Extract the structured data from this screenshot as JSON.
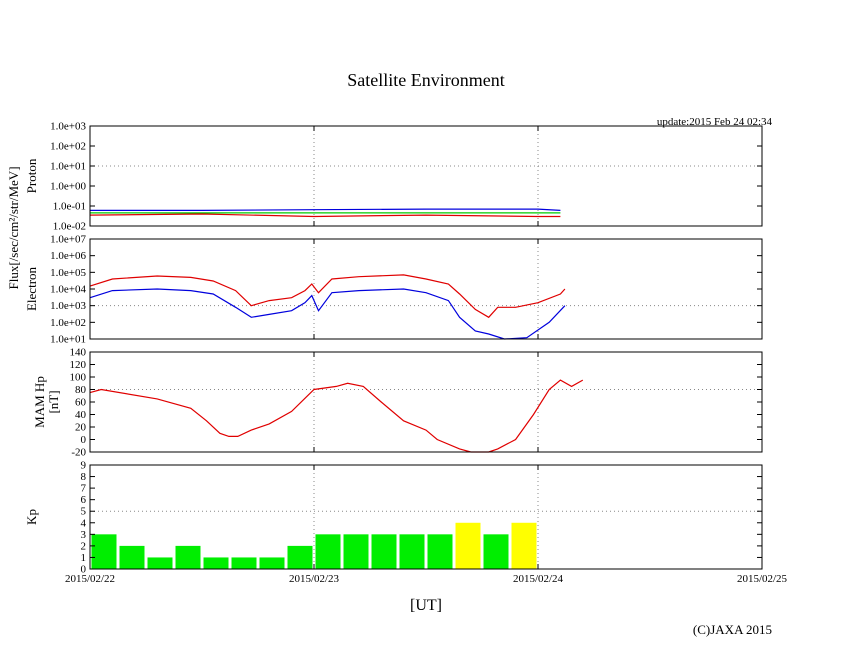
{
  "chart_data": {
    "title": "Satellite Environment",
    "update_text": "update:2015 Feb 24 02:34",
    "copyright": "(C)JAXA 2015",
    "xlabel": "[UT]",
    "x_ticks": [
      "2015/02/22",
      "2015/02/23",
      "2015/02/24",
      "2015/02/25"
    ],
    "x_range_days": [
      0,
      3
    ],
    "shared_ylabel": "Flux[/sec/cm²/str/MeV]",
    "colors": {
      "red": "#e00000",
      "blue": "#0000dd",
      "green": "#00cc00",
      "yellow": "#ffff00"
    },
    "panels": [
      {
        "name": "Proton",
        "type": "line",
        "ylabel": "Proton",
        "yscale": "log",
        "ylim": [
          0.01,
          1000
        ],
        "y_ticks": [
          "1.0e-02",
          "1.0e-01",
          "1.0e+00",
          "1.0e+01",
          "1.0e+02",
          "1.0e+03"
        ],
        "grid_y_at": [
          10
        ],
        "series": [
          {
            "color": "#0000dd",
            "points": [
              [
                0,
                0.06
              ],
              [
                0.5,
                0.06
              ],
              [
                1.0,
                0.065
              ],
              [
                1.5,
                0.07
              ],
              [
                2.0,
                0.07
              ],
              [
                2.1,
                0.06
              ]
            ]
          },
          {
            "color": "#00cc00",
            "points": [
              [
                0,
                0.045
              ],
              [
                0.5,
                0.045
              ],
              [
                1.0,
                0.045
              ],
              [
                1.5,
                0.045
              ],
              [
                2.0,
                0.045
              ],
              [
                2.1,
                0.045
              ]
            ]
          },
          {
            "color": "#e00000",
            "points": [
              [
                0,
                0.035
              ],
              [
                0.5,
                0.04
              ],
              [
                1.0,
                0.03
              ],
              [
                1.5,
                0.035
              ],
              [
                2.0,
                0.03
              ],
              [
                2.1,
                0.03
              ]
            ]
          }
        ]
      },
      {
        "name": "Electron",
        "type": "line",
        "ylabel": "Electron",
        "yscale": "log",
        "ylim": [
          10,
          10000000
        ],
        "y_ticks": [
          "1.0e+01",
          "1.0e+02",
          "1.0e+03",
          "1.0e+04",
          "1.0e+05",
          "1.0e+06",
          "1.0e+07"
        ],
        "grid_y_at": [
          1000
        ],
        "series": [
          {
            "color": "#e00000",
            "points": [
              [
                0,
                15000
              ],
              [
                0.1,
                40000
              ],
              [
                0.3,
                60000
              ],
              [
                0.45,
                50000
              ],
              [
                0.55,
                30000
              ],
              [
                0.65,
                8000
              ],
              [
                0.72,
                1000
              ],
              [
                0.8,
                2000
              ],
              [
                0.9,
                3000
              ],
              [
                0.96,
                8000
              ],
              [
                0.99,
                20000
              ],
              [
                1.02,
                6000
              ],
              [
                1.08,
                40000
              ],
              [
                1.2,
                55000
              ],
              [
                1.4,
                70000
              ],
              [
                1.5,
                40000
              ],
              [
                1.6,
                20000
              ],
              [
                1.65,
                5000
              ],
              [
                1.72,
                600
              ],
              [
                1.78,
                200
              ],
              [
                1.82,
                800
              ],
              [
                1.9,
                800
              ],
              [
                2.0,
                1500
              ],
              [
                2.1,
                5000
              ],
              [
                2.12,
                10000
              ]
            ]
          },
          {
            "color": "#0000dd",
            "points": [
              [
                0,
                3000
              ],
              [
                0.1,
                8000
              ],
              [
                0.3,
                10000
              ],
              [
                0.45,
                8000
              ],
              [
                0.55,
                5000
              ],
              [
                0.65,
                800
              ],
              [
                0.72,
                200
              ],
              [
                0.8,
                300
              ],
              [
                0.9,
                500
              ],
              [
                0.96,
                1500
              ],
              [
                0.99,
                4000
              ],
              [
                1.02,
                500
              ],
              [
                1.08,
                6000
              ],
              [
                1.2,
                8000
              ],
              [
                1.4,
                10000
              ],
              [
                1.5,
                6000
              ],
              [
                1.6,
                2000
              ],
              [
                1.65,
                200
              ],
              [
                1.72,
                30
              ],
              [
                1.78,
                20
              ],
              [
                1.85,
                10
              ],
              [
                1.95,
                12
              ],
              [
                2.05,
                100
              ],
              [
                2.12,
                1000
              ]
            ]
          }
        ]
      },
      {
        "name": "MAM Hp",
        "type": "line",
        "ylabel": "MAM Hp",
        "ylabel2": "[nT]",
        "ylim": [
          -20,
          140
        ],
        "y_ticks": [
          "-20",
          "0",
          "20",
          "40",
          "60",
          "80",
          "100",
          "120",
          "140"
        ],
        "grid_y_at": [
          80
        ],
        "series": [
          {
            "color": "#e00000",
            "points": [
              [
                0,
                75
              ],
              [
                0.05,
                80
              ],
              [
                0.3,
                65
              ],
              [
                0.45,
                50
              ],
              [
                0.52,
                30
              ],
              [
                0.58,
                10
              ],
              [
                0.62,
                5
              ],
              [
                0.66,
                5
              ],
              [
                0.72,
                15
              ],
              [
                0.8,
                25
              ],
              [
                0.9,
                45
              ],
              [
                1.0,
                80
              ],
              [
                1.1,
                85
              ],
              [
                1.15,
                90
              ],
              [
                1.22,
                85
              ],
              [
                1.3,
                60
              ],
              [
                1.4,
                30
              ],
              [
                1.5,
                15
              ],
              [
                1.55,
                0
              ],
              [
                1.65,
                -15
              ],
              [
                1.7,
                -20
              ],
              [
                1.78,
                -20
              ],
              [
                1.82,
                -15
              ],
              [
                1.9,
                0
              ],
              [
                1.98,
                40
              ],
              [
                2.05,
                80
              ],
              [
                2.1,
                95
              ],
              [
                2.15,
                85
              ],
              [
                2.2,
                95
              ]
            ]
          }
        ]
      },
      {
        "name": "Kp",
        "type": "bar",
        "ylabel": "Kp",
        "ylim": [
          0,
          9
        ],
        "y_ticks": [
          "0",
          "1",
          "2",
          "3",
          "4",
          "5",
          "6",
          "7",
          "8",
          "9"
        ],
        "grid_y_at": [
          5
        ],
        "bar_width_hours": 3,
        "values": [
          3,
          2,
          1,
          2,
          1,
          1,
          1,
          2,
          3,
          3,
          3,
          3,
          3,
          4,
          3,
          4
        ],
        "bar_colors": [
          "#00ee00",
          "#00ee00",
          "#00ee00",
          "#00ee00",
          "#00ee00",
          "#00ee00",
          "#00ee00",
          "#00ee00",
          "#00ee00",
          "#00ee00",
          "#00ee00",
          "#00ee00",
          "#00ee00",
          "#ffff00",
          "#00ee00",
          "#ffff00"
        ]
      }
    ]
  }
}
